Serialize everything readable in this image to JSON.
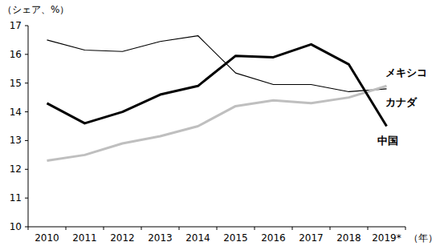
{
  "chart_data": {
    "type": "line",
    "y_label": "（シェア、%）",
    "x_label": "（年）",
    "categories": [
      "2010",
      "2011",
      "2012",
      "2013",
      "2014",
      "2015",
      "2016",
      "2017",
      "2018",
      "2019*"
    ],
    "series": [
      {
        "name": "メキシコ",
        "color": "#000000",
        "line_style": "thin",
        "values": [
          16.5,
          16.15,
          16.1,
          16.45,
          16.65,
          15.35,
          14.95,
          14.95,
          14.7,
          14.8
        ]
      },
      {
        "name": "カナダ",
        "color": "#bfbfbf",
        "line_style": "thick",
        "values": [
          12.3,
          12.5,
          12.9,
          13.15,
          13.5,
          14.2,
          14.4,
          14.3,
          14.5,
          14.9
        ]
      },
      {
        "name": "中国",
        "color": "#000000",
        "line_style": "thick",
        "values": [
          14.3,
          13.6,
          14.0,
          14.6,
          14.9,
          15.95,
          15.9,
          16.35,
          15.65,
          13.5
        ]
      }
    ],
    "ylim": [
      10,
      17
    ],
    "yticks": [
      10,
      11,
      12,
      13,
      14,
      15,
      16,
      17
    ],
    "grid": false
  }
}
